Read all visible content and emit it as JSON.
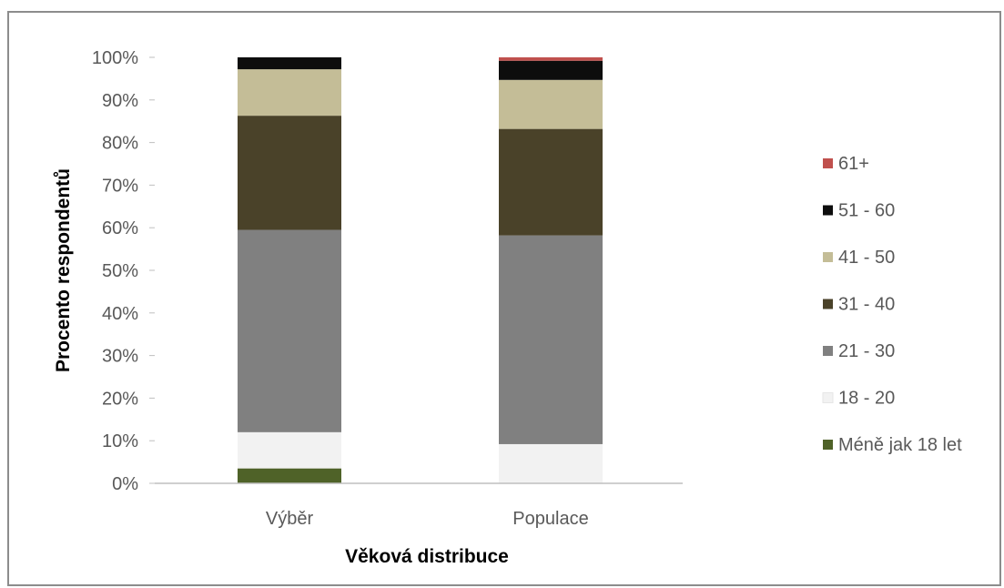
{
  "chart_data": {
    "type": "bar",
    "stacked": true,
    "title": "",
    "xlabel": "Věková distribuce",
    "ylabel": "Procento respondentů",
    "ylim": [
      0,
      100
    ],
    "y_ticks": [
      "0%",
      "10%",
      "20%",
      "30%",
      "40%",
      "50%",
      "60%",
      "70%",
      "80%",
      "90%",
      "100%"
    ],
    "categories": [
      "Výběr",
      "Populace"
    ],
    "grid": false,
    "legend_position": "right",
    "series": [
      {
        "name": "Méně jak 18 let",
        "color": "#4f6228",
        "values": [
          3.5,
          0
        ]
      },
      {
        "name": "18 - 20",
        "color": "#f2f2f2",
        "values": [
          8.5,
          9.2
        ]
      },
      {
        "name": "21 - 30",
        "color": "#808080",
        "values": [
          47.5,
          49
        ]
      },
      {
        "name": "31 - 40",
        "color": "#4a4229",
        "values": [
          26.8,
          25
        ]
      },
      {
        "name": "41 - 50",
        "color": "#c4bd97",
        "values": [
          10.9,
          11.5
        ]
      },
      {
        "name": "51 - 60",
        "color": "#0d0d0d",
        "values": [
          2.8,
          4.5
        ]
      },
      {
        "name": "61+",
        "color": "#c0504d",
        "values": [
          0,
          0.8
        ]
      }
    ]
  }
}
